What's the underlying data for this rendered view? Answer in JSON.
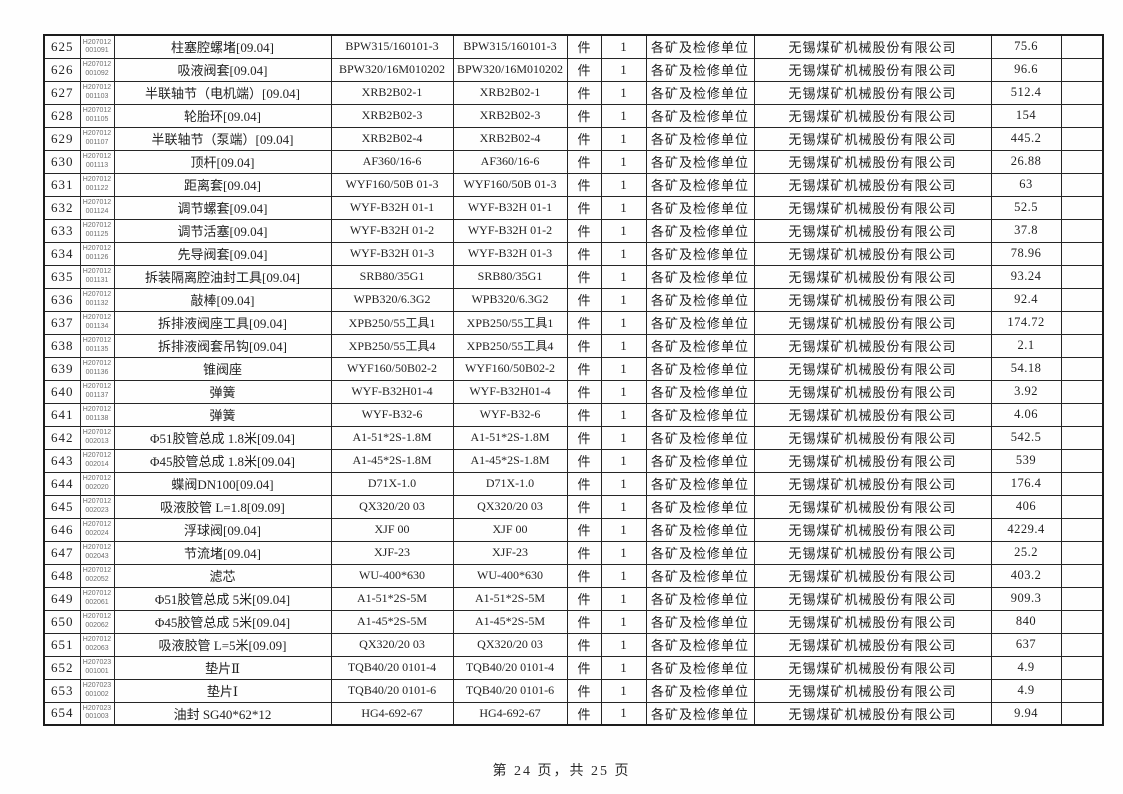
{
  "page": {
    "footer": "第 24 页，共 25 页"
  },
  "table": {
    "shared": {
      "unit": "件",
      "qty": "1",
      "dept": "各矿及检修单位",
      "supplier": "无锡煤矿机械股份有限公司"
    },
    "rows": [
      {
        "no": "625",
        "code1": "H207012",
        "code2": "001091",
        "name": "柱塞腔螺堵[09.04]",
        "spec": "BPW315/160101-3",
        "price": "75.6"
      },
      {
        "no": "626",
        "code1": "H207012",
        "code2": "001092",
        "name": "吸液阀套[09.04]",
        "spec": "BPW320/16M010202",
        "price": "96.6"
      },
      {
        "no": "627",
        "code1": "H207012",
        "code2": "001103",
        "name": "半联轴节（电机端）[09.04]",
        "spec": "XRB2B02-1",
        "price": "512.4"
      },
      {
        "no": "628",
        "code1": "H207012",
        "code2": "001105",
        "name": "轮胎环[09.04]",
        "spec": "XRB2B02-3",
        "price": "154"
      },
      {
        "no": "629",
        "code1": "H207012",
        "code2": "001107",
        "name": "半联轴节（泵端）[09.04]",
        "spec": "XRB2B02-4",
        "price": "445.2"
      },
      {
        "no": "630",
        "code1": "H207012",
        "code2": "001113",
        "name": "顶杆[09.04]",
        "spec": "AF360/16-6",
        "price": "26.88"
      },
      {
        "no": "631",
        "code1": "H207012",
        "code2": "001122",
        "name": "距离套[09.04]",
        "spec": "WYF160/50B 01-3",
        "price": "63"
      },
      {
        "no": "632",
        "code1": "H207012",
        "code2": "001124",
        "name": "调节螺套[09.04]",
        "spec": "WYF-B32H 01-1",
        "price": "52.5"
      },
      {
        "no": "633",
        "code1": "H207012",
        "code2": "001125",
        "name": "调节活塞[09.04]",
        "spec": "WYF-B32H 01-2",
        "price": "37.8"
      },
      {
        "no": "634",
        "code1": "H207012",
        "code2": "001126",
        "name": "先导阀套[09.04]",
        "spec": "WYF-B32H 01-3",
        "price": "78.96"
      },
      {
        "no": "635",
        "code1": "H207012",
        "code2": "001131",
        "name": "拆装隔离腔油封工具[09.04]",
        "spec": "SRB80/35G1",
        "price": "93.24"
      },
      {
        "no": "636",
        "code1": "H207012",
        "code2": "001132",
        "name": "敲棒[09.04]",
        "spec": "WPB320/6.3G2",
        "price": "92.4"
      },
      {
        "no": "637",
        "code1": "H207012",
        "code2": "001134",
        "name": "拆排液阀座工具[09.04]",
        "spec": "XPB250/55工具1",
        "price": "174.72"
      },
      {
        "no": "638",
        "code1": "H207012",
        "code2": "001135",
        "name": "拆排液阀套吊钩[09.04]",
        "spec": "XPB250/55工具4",
        "price": "2.1"
      },
      {
        "no": "639",
        "code1": "H207012",
        "code2": "001136",
        "name": "锥阀座",
        "spec": "WYF160/50B02-2",
        "price": "54.18"
      },
      {
        "no": "640",
        "code1": "H207012",
        "code2": "001137",
        "name": "弹簧",
        "spec": "WYF-B32H01-4",
        "price": "3.92"
      },
      {
        "no": "641",
        "code1": "H207012",
        "code2": "001138",
        "name": "弹簧",
        "spec": "WYF-B32-6",
        "price": "4.06"
      },
      {
        "no": "642",
        "code1": "H207012",
        "code2": "002013",
        "name": "Φ51胶管总成 1.8米[09.04]",
        "spec": "A1-51*2S-1.8M",
        "price": "542.5"
      },
      {
        "no": "643",
        "code1": "H207012",
        "code2": "002014",
        "name": "Φ45胶管总成 1.8米[09.04]",
        "spec": "A1-45*2S-1.8M",
        "price": "539"
      },
      {
        "no": "644",
        "code1": "H207012",
        "code2": "002020",
        "name": "蝶阀DN100[09.04]",
        "spec": "D71X-1.0",
        "price": "176.4"
      },
      {
        "no": "645",
        "code1": "H207012",
        "code2": "002023",
        "name": "吸液胶管 L=1.8[09.09]",
        "spec": "QX320/20 03",
        "price": "406"
      },
      {
        "no": "646",
        "code1": "H207012",
        "code2": "002024",
        "name": "浮球阀[09.04]",
        "spec": "XJF 00",
        "price": "4229.4"
      },
      {
        "no": "647",
        "code1": "H207012",
        "code2": "002043",
        "name": "节流堵[09.04]",
        "spec": "XJF-23",
        "price": "25.2"
      },
      {
        "no": "648",
        "code1": "H207012",
        "code2": "002052",
        "name": "滤芯",
        "spec": "WU-400*630",
        "price": "403.2"
      },
      {
        "no": "649",
        "code1": "H207012",
        "code2": "002061",
        "name": "Φ51胶管总成 5米[09.04]",
        "spec": "A1-51*2S-5M",
        "price": "909.3"
      },
      {
        "no": "650",
        "code1": "H207012",
        "code2": "002062",
        "name": "Φ45胶管总成 5米[09.04]",
        "spec": "A1-45*2S-5M",
        "price": "840"
      },
      {
        "no": "651",
        "code1": "H207012",
        "code2": "002063",
        "name": "吸液胶管 L=5米[09.09]",
        "spec": "QX320/20 03",
        "price": "637"
      },
      {
        "no": "652",
        "code1": "H207023",
        "code2": "001001",
        "name": "垫片Ⅱ",
        "spec": "TQB40/20 0101-4",
        "price": "4.9"
      },
      {
        "no": "653",
        "code1": "H207023",
        "code2": "001002",
        "name": "垫片Ⅰ",
        "spec": "TQB40/20 0101-6",
        "price": "4.9"
      },
      {
        "no": "654",
        "code1": "H207023",
        "code2": "001003",
        "name": "油封 SG40*62*12",
        "spec": "HG4-692-67",
        "price": "9.94"
      }
    ]
  }
}
